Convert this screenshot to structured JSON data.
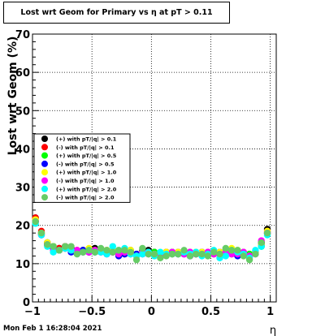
{
  "chart_data": {
    "type": "scatter",
    "title": "Lost wrt Geom for Primary vs   η at pT > 0.11",
    "xlabel": "η",
    "ylabel": "Lost wrt Geom (%)",
    "xlim": [
      -1,
      1.05
    ],
    "ylim": [
      0,
      70
    ],
    "x_ticks": [
      -1,
      -0.5,
      0,
      0.5,
      1
    ],
    "x_tick_labels": [
      "−1",
      "−0.5",
      "0",
      "0.5",
      "1"
    ],
    "y_ticks": [
      0,
      10,
      20,
      30,
      40,
      50,
      60,
      70
    ],
    "y_tick_labels": [
      "0",
      "10",
      "20",
      "30",
      "40",
      "50",
      "60",
      "70"
    ],
    "grid": true,
    "legend_placement": "left-middle",
    "x": [
      -0.975,
      -0.925,
      -0.875,
      -0.825,
      -0.775,
      -0.725,
      -0.675,
      -0.625,
      -0.575,
      -0.525,
      -0.475,
      -0.425,
      -0.375,
      -0.325,
      -0.275,
      -0.225,
      -0.175,
      -0.125,
      -0.075,
      -0.025,
      0.025,
      0.075,
      0.125,
      0.175,
      0.225,
      0.275,
      0.325,
      0.375,
      0.425,
      0.475,
      0.525,
      0.575,
      0.625,
      0.675,
      0.725,
      0.775,
      0.825,
      0.875,
      0.925,
      0.975
    ],
    "series": [
      {
        "name": "(+) with pT/|q| > 0.1",
        "color": "#000000",
        "values": [
          22.0,
          18.0,
          15.5,
          14.5,
          14.0,
          14.5,
          14.0,
          13.0,
          13.5,
          13.0,
          14.0,
          13.5,
          13.0,
          13.5,
          13.0,
          12.5,
          13.5,
          12.0,
          13.5,
          13.5,
          13.0,
          12.5,
          13.0,
          13.0,
          12.5,
          13.0,
          12.5,
          12.5,
          13.0,
          12.5,
          13.0,
          12.5,
          13.5,
          13.0,
          12.5,
          12.5,
          12.0,
          13.0,
          15.5,
          19.0
        ]
      },
      {
        "name": "(-) with pT/|q| > 0.1",
        "color": "#ff0000",
        "values": [
          22.0,
          18.5,
          15.0,
          14.0,
          14.0,
          14.5,
          13.5,
          13.5,
          13.0,
          13.0,
          13.5,
          13.0,
          13.5,
          13.0,
          12.5,
          13.0,
          13.0,
          12.5,
          13.0,
          13.0,
          12.5,
          12.5,
          13.0,
          12.5,
          13.0,
          12.5,
          13.0,
          12.5,
          12.5,
          13.0,
          12.5,
          13.0,
          13.0,
          12.5,
          13.0,
          12.5,
          12.5,
          13.0,
          15.0,
          18.5
        ]
      },
      {
        "name": "(+) with pT/|q| > 0.5",
        "color": "#00ff00",
        "values": [
          21.0,
          18.0,
          15.0,
          14.5,
          13.5,
          14.0,
          13.5,
          13.0,
          13.0,
          13.5,
          13.0,
          13.5,
          13.0,
          13.0,
          12.5,
          13.0,
          12.5,
          12.5,
          13.0,
          12.5,
          13.0,
          12.5,
          12.5,
          13.0,
          12.5,
          13.0,
          12.5,
          13.0,
          12.5,
          12.5,
          13.0,
          12.5,
          13.0,
          12.5,
          12.5,
          13.0,
          12.5,
          13.0,
          14.5,
          18.0
        ]
      },
      {
        "name": "(-) with pT/|q| > 0.5",
        "color": "#0000ff",
        "values": [
          21.0,
          17.5,
          15.0,
          14.0,
          13.5,
          14.0,
          13.0,
          13.0,
          13.5,
          13.0,
          13.0,
          13.0,
          12.5,
          13.0,
          12.0,
          12.5,
          13.0,
          12.5,
          12.5,
          13.0,
          12.5,
          12.0,
          12.5,
          12.5,
          13.0,
          12.5,
          12.0,
          12.5,
          13.0,
          12.5,
          12.5,
          13.0,
          12.5,
          13.0,
          12.0,
          12.5,
          12.0,
          13.0,
          15.0,
          18.0
        ]
      },
      {
        "name": "(+) with pT/|q| > 1.0",
        "color": "#ffff00",
        "values": [
          21.5,
          18.0,
          15.5,
          14.5,
          13.5,
          14.0,
          13.5,
          13.0,
          13.0,
          14.0,
          13.5,
          13.0,
          13.5,
          13.5,
          13.0,
          13.0,
          13.5,
          12.0,
          13.0,
          13.0,
          12.5,
          12.5,
          13.0,
          12.5,
          13.0,
          13.0,
          12.5,
          13.0,
          13.0,
          12.5,
          12.5,
          13.0,
          13.5,
          14.0,
          13.5,
          12.5,
          12.0,
          13.0,
          15.0,
          18.5
        ]
      },
      {
        "name": "(-) with pT/|q| > 1.0",
        "color": "#ff00ff",
        "values": [
          21.0,
          17.5,
          15.0,
          13.5,
          13.5,
          14.0,
          13.5,
          13.5,
          13.0,
          13.0,
          13.5,
          13.0,
          13.0,
          13.0,
          12.5,
          13.0,
          12.5,
          12.0,
          13.0,
          12.5,
          12.5,
          12.5,
          12.5,
          13.0,
          12.5,
          12.5,
          13.0,
          12.5,
          12.5,
          13.0,
          12.5,
          12.5,
          13.0,
          12.5,
          12.5,
          13.0,
          12.0,
          12.5,
          16.0,
          18.0
        ]
      },
      {
        "name": "(+) with pT/|q| > 2.0",
        "color": "#00ffff",
        "values": [
          20.5,
          17.5,
          14.5,
          13.0,
          13.5,
          14.0,
          13.5,
          12.5,
          13.0,
          13.5,
          13.0,
          13.0,
          12.5,
          14.5,
          13.5,
          14.0,
          12.5,
          12.0,
          12.5,
          13.0,
          12.0,
          13.0,
          12.5,
          12.5,
          12.5,
          13.0,
          12.5,
          13.0,
          12.0,
          12.5,
          13.5,
          11.5,
          12.0,
          13.5,
          13.0,
          12.5,
          11.5,
          13.5,
          14.5,
          17.5
        ]
      },
      {
        "name": "(-) with pT/|q| > 2.0",
        "color": "#66cc66",
        "values": [
          21.0,
          18.0,
          15.0,
          14.5,
          13.5,
          14.5,
          14.5,
          12.5,
          13.0,
          13.5,
          13.0,
          14.0,
          13.5,
          13.0,
          13.5,
          13.5,
          13.0,
          11.0,
          14.0,
          12.5,
          12.5,
          11.5,
          12.0,
          12.5,
          12.5,
          13.5,
          12.0,
          12.5,
          12.5,
          12.0,
          13.0,
          12.5,
          14.0,
          13.5,
          13.5,
          12.0,
          11.0,
          12.5,
          15.5,
          18.0
        ]
      }
    ]
  },
  "footer": {
    "datestamp": "Mon Feb  1 16:28:04 2021"
  }
}
